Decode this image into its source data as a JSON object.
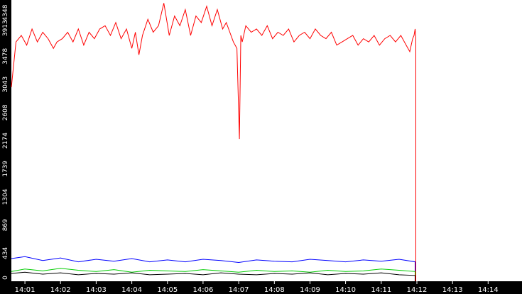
{
  "chart_data": {
    "type": "line",
    "title": "",
    "xlabel": "",
    "ylabel": "",
    "grid": false,
    "legend": "none",
    "background": "#000000",
    "plot_background": "#ffffff",
    "y_ticks": [
      0,
      434,
      869,
      1304,
      1739,
      2174,
      2608,
      3043,
      3478,
      3913,
      4348
    ],
    "ylim": [
      0,
      4348
    ],
    "x_tick_labels": [
      "14:01",
      "14:02",
      "14:03",
      "14:04",
      "14:05",
      "14:06",
      "14:07",
      "14:08",
      "14:09",
      "14:10",
      "14:11",
      "14:12",
      "14:13",
      "14:14"
    ],
    "xlim_minutes": [
      0.62,
      14.95
    ],
    "series": [
      {
        "color": "#ff0000",
        "x": [
          0.62,
          0.75,
          0.9,
          1.05,
          1.2,
          1.35,
          1.5,
          1.65,
          1.8,
          1.9,
          2.05,
          2.2,
          2.35,
          2.5,
          2.65,
          2.8,
          2.95,
          3.1,
          3.25,
          3.4,
          3.55,
          3.7,
          3.85,
          4.0,
          4.1,
          4.2,
          4.3,
          4.45,
          4.6,
          4.75,
          4.9,
          5.05,
          5.2,
          5.35,
          5.5,
          5.65,
          5.8,
          5.95,
          6.1,
          6.25,
          6.4,
          6.55,
          6.65,
          6.75,
          6.85,
          6.95,
          7.02,
          7.06,
          7.1,
          7.2,
          7.35,
          7.5,
          7.65,
          7.8,
          7.95,
          8.1,
          8.25,
          8.4,
          8.55,
          8.7,
          8.85,
          9.0,
          9.15,
          9.3,
          9.45,
          9.6,
          9.75,
          9.9,
          10.05,
          10.2,
          10.35,
          10.5,
          10.65,
          10.8,
          10.95,
          11.1,
          11.25,
          11.4,
          11.55,
          11.7,
          11.8,
          11.88,
          11.92,
          11.95,
          11.97
        ],
        "y": [
          3000,
          3700,
          3800,
          3650,
          3900,
          3700,
          3850,
          3750,
          3600,
          3700,
          3750,
          3850,
          3700,
          3900,
          3650,
          3850,
          3750,
          3900,
          3950,
          3800,
          4000,
          3750,
          3900,
          3600,
          3850,
          3500,
          3800,
          4050,
          3850,
          3950,
          4300,
          3800,
          4100,
          3950,
          4200,
          3800,
          4100,
          4000,
          4250,
          3950,
          4200,
          3900,
          4000,
          3850,
          3700,
          3600,
          2200,
          3800,
          3700,
          3950,
          3850,
          3900,
          3800,
          3950,
          3750,
          3850,
          3800,
          3900,
          3700,
          3800,
          3850,
          3750,
          3900,
          3800,
          3750,
          3850,
          3650,
          3700,
          3750,
          3800,
          3650,
          3750,
          3700,
          3800,
          3650,
          3750,
          3800,
          3700,
          3800,
          3650,
          3550,
          3750,
          3800,
          3900,
          3750
        ]
      },
      {
        "color": "#0000ff",
        "x": [
          0.62,
          1.0,
          1.5,
          2.0,
          2.5,
          3.0,
          3.5,
          4.0,
          4.5,
          5.0,
          5.5,
          6.0,
          6.5,
          7.0,
          7.5,
          8.0,
          8.5,
          9.0,
          9.5,
          10.0,
          10.5,
          11.0,
          11.5,
          11.95
        ],
        "y": [
          350,
          380,
          320,
          360,
          300,
          340,
          310,
          350,
          300,
          330,
          300,
          340,
          320,
          290,
          330,
          310,
          300,
          340,
          320,
          300,
          330,
          310,
          340,
          300
        ]
      },
      {
        "color": "#00cc00",
        "x": [
          0.62,
          1.0,
          1.5,
          2.0,
          2.5,
          3.0,
          3.5,
          4.0,
          4.5,
          5.0,
          5.5,
          6.0,
          6.5,
          7.0,
          7.5,
          8.0,
          8.5,
          9.0,
          9.5,
          10.0,
          10.5,
          11.0,
          11.5,
          11.95
        ],
        "y": [
          150,
          190,
          160,
          200,
          170,
          150,
          180,
          140,
          170,
          160,
          150,
          180,
          160,
          140,
          170,
          150,
          160,
          140,
          170,
          150,
          160,
          190,
          170,
          150
        ]
      },
      {
        "color": "#000000",
        "x": [
          0.62,
          1.0,
          1.5,
          2.0,
          2.5,
          3.0,
          3.5,
          4.0,
          4.5,
          5.0,
          5.5,
          6.0,
          6.5,
          7.0,
          7.5,
          8.0,
          8.5,
          9.0,
          9.5,
          10.0,
          10.5,
          11.0,
          11.5,
          11.95
        ],
        "y": [
          120,
          140,
          110,
          130,
          100,
          120,
          110,
          130,
          100,
          110,
          120,
          100,
          130,
          110,
          100,
          120,
          110,
          130,
          100,
          120,
          110,
          130,
          100,
          90
        ]
      }
    ]
  }
}
